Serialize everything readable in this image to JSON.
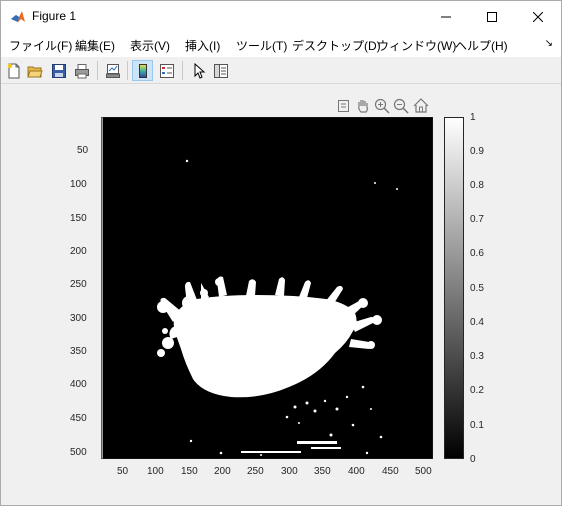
{
  "window": {
    "title": "Figure 1",
    "minimize_label": "—",
    "maximize_label": "□",
    "close_label": "✕"
  },
  "menu": {
    "items": [
      {
        "label": "ファイル(F)"
      },
      {
        "label": "編集(E)"
      },
      {
        "label": "表示(V)"
      },
      {
        "label": "挿入(I)"
      },
      {
        "label": "ツール(T)"
      },
      {
        "label": "デスクトップ(D)"
      },
      {
        "label": "ウィンドウ(W)"
      },
      {
        "label": "ヘルプ(H)"
      }
    ],
    "overflow_label": "↘"
  },
  "toolbar": {
    "buttons": [
      {
        "icon": "new-figure-icon"
      },
      {
        "icon": "open-file-icon"
      },
      {
        "icon": "save-icon"
      },
      {
        "icon": "print-icon"
      },
      {
        "icon": "link-plot-icon"
      },
      {
        "icon": "insert-colorbar-icon"
      },
      {
        "icon": "insert-legend-icon"
      },
      {
        "icon": "edit-plot-icon"
      },
      {
        "icon": "property-inspector-icon"
      }
    ]
  },
  "axes_toolbar": [
    "export-icon",
    "pan-icon",
    "zoom-in-icon",
    "zoom-out-icon",
    "home-icon"
  ],
  "image": {
    "x_ticks": [
      "50",
      "100",
      "150",
      "200",
      "250",
      "300",
      "350",
      "400",
      "450",
      "500"
    ],
    "y_ticks": [
      "50",
      "100",
      "150",
      "200",
      "250",
      "300",
      "350",
      "400",
      "450",
      "500"
    ]
  },
  "colorbar": {
    "ticks": [
      "1",
      "0.9",
      "0.8",
      "0.7",
      "0.6",
      "0.5",
      "0.4",
      "0.3",
      "0.2",
      "0.1",
      "0"
    ]
  },
  "colors": {
    "image_bg": "#000000",
    "splash": "#ffffff",
    "matlab_orange": "#e86b1f"
  }
}
